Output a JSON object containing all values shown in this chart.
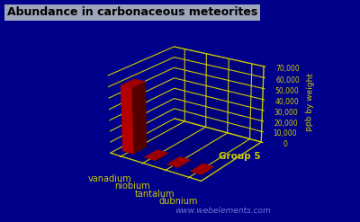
{
  "title": "Abundance in carbonaceous meteorites",
  "ylabel": "ppb by weight",
  "xlabel": "Group 5",
  "categories": [
    "vanadium",
    "niobium",
    "tantalum",
    "dubnium"
  ],
  "values": [
    60000,
    300,
    100,
    20
  ],
  "bar_color": "#cc0000",
  "background_color": "#00008b",
  "grid_color": "#cccc00",
  "text_color": "#cccc00",
  "ylim": [
    0,
    70000
  ],
  "yticks": [
    0,
    10000,
    20000,
    30000,
    40000,
    50000,
    60000,
    70000
  ],
  "ytick_labels": [
    "0",
    "10,000",
    "20,000",
    "30,000",
    "40,000",
    "50,000",
    "60,000",
    "70,000"
  ],
  "watermark": "www.webelements.com"
}
